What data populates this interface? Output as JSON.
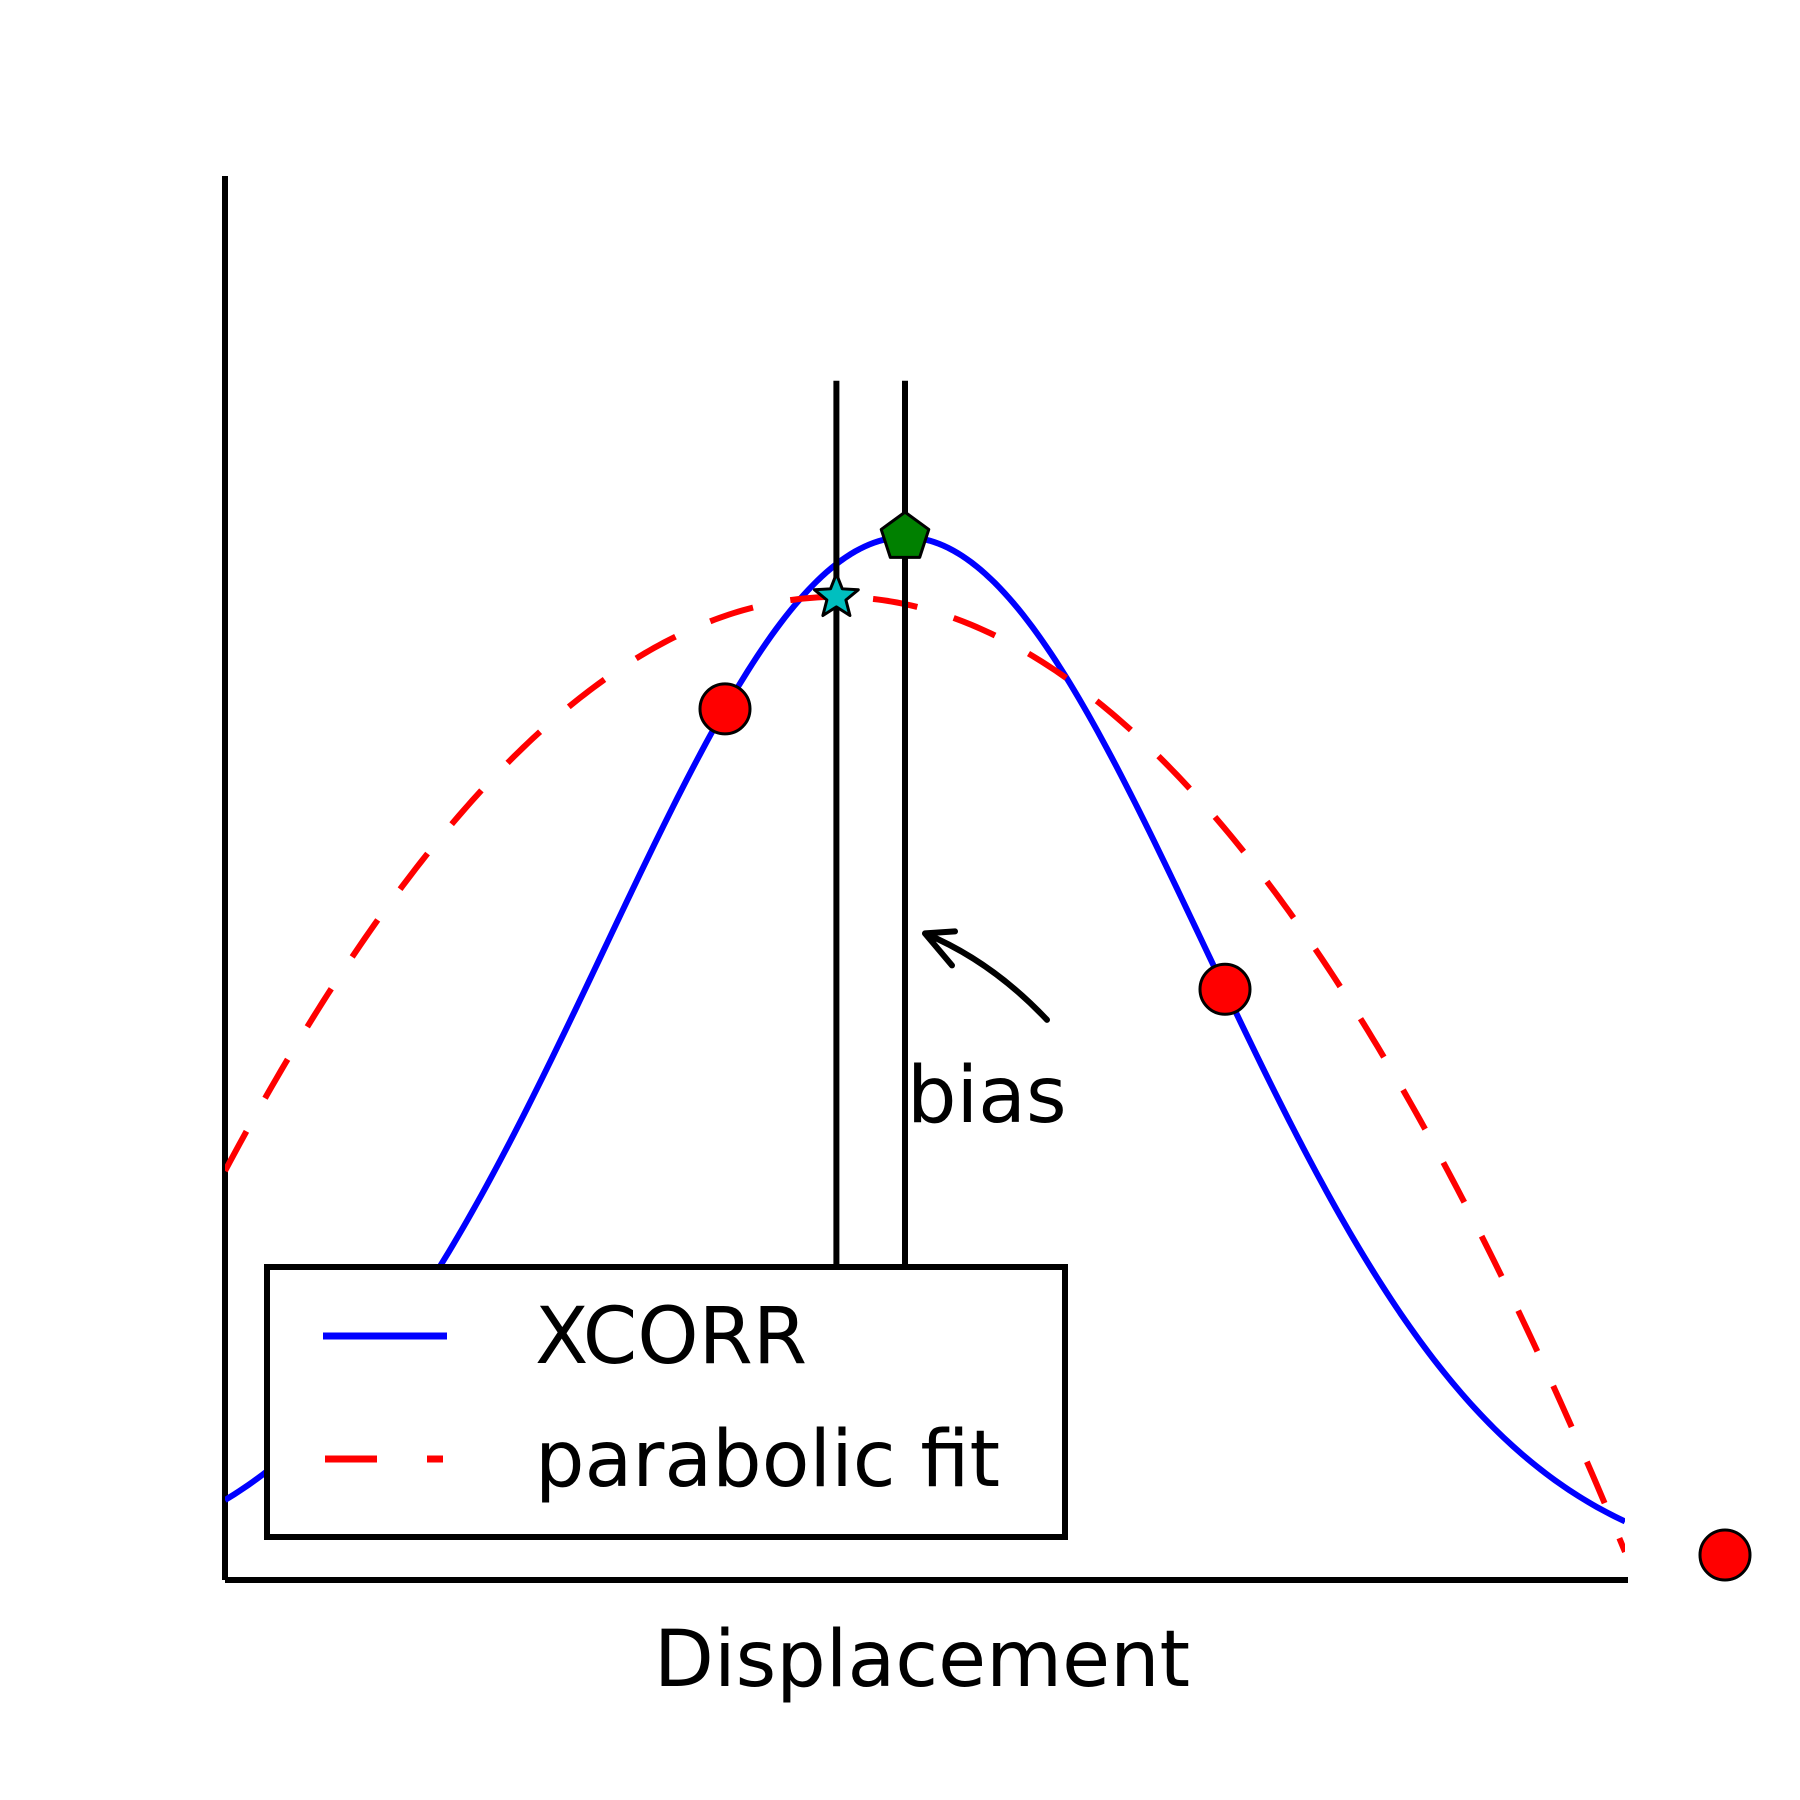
{
  "chart_data": {
    "type": "line",
    "title": "",
    "xlabel": "Displacement",
    "ylabel": "",
    "xlim": [
      -3.4,
      3.6
    ],
    "ylim": [
      0,
      1.4
    ],
    "grid": false,
    "legend": {
      "placement": "lower-left",
      "entries": [
        {
          "label": "XCORR",
          "style": "solid",
          "color": "#0000ff"
        },
        {
          "label": "parabolic fit",
          "style": "dashed",
          "color": "#ff0000"
        }
      ]
    },
    "series": [
      {
        "name": "XCORR",
        "style": "solid",
        "color": "#0000ff",
        "curve": {
          "kind": "gaussian",
          "amplitude": 1.0,
          "center": 0,
          "sigma": 1.5,
          "offset": 0
        }
      },
      {
        "name": "parabolic fit",
        "style": "dashed",
        "color": "#ff0000",
        "curve": {
          "kind": "parabola",
          "a": -0.0589,
          "b": -0.0404,
          "c": 0.9358
        }
      }
    ],
    "sample_points": {
      "color": "#ff0000",
      "x": [
        -0.9,
        1.6,
        4.1
      ],
      "y": [
        0.8353,
        0.5665,
        0.024
      ]
    },
    "markers": [
      {
        "label": "parabolic peak",
        "shape": "star",
        "color": "#00bfbf",
        "x": -0.343,
        "y": 0.9427
      },
      {
        "label": "true peak",
        "shape": "pentagon",
        "color": "#008000",
        "x": 0,
        "y": 1.0
      }
    ],
    "vertical_lines": [
      {
        "x": -0.343,
        "y_from": 0.3,
        "y_to": 1.15
      },
      {
        "x": 0,
        "y_from": 0.3,
        "y_to": 1.15
      }
    ],
    "annotations": [
      {
        "text": "bias",
        "arrow_to": {
          "x": 0.1,
          "y": 0.62
        },
        "text_at": {
          "x": 0.47,
          "y": 0.47
        }
      }
    ]
  }
}
